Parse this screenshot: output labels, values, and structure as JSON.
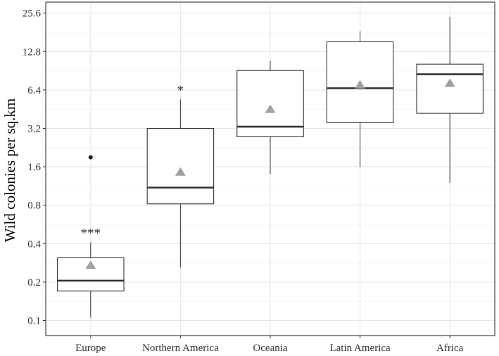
{
  "chart_data": {
    "type": "box",
    "ylabel": "Wild colonies per sq.km",
    "xlabel": "",
    "y_scale": "log2",
    "ylim": [
      0.088,
      27.5
    ],
    "yticks": [
      0.1,
      0.2,
      0.4,
      0.8,
      1.6,
      3.2,
      6.4,
      12.8,
      25.6
    ],
    "ytick_labels": [
      "0.1",
      "0.2",
      "0.4",
      "0.8",
      "1.6",
      "3.2",
      "6.4",
      "12.8",
      "25.6"
    ],
    "grid": true,
    "categories": [
      "Europe",
      "Northern America",
      "Oceania",
      "Latin America",
      "Africa"
    ],
    "boxes": [
      {
        "category": "Europe",
        "whisker_low": 0.105,
        "q1": 0.17,
        "median": 0.205,
        "q3": 0.31,
        "whisker_high": 0.41,
        "mean": 0.27,
        "outliers": [
          1.9
        ],
        "annotation": "***"
      },
      {
        "category": "Northern America",
        "whisker_low": 0.26,
        "q1": 0.82,
        "median": 1.1,
        "q3": 3.2,
        "whisker_high": 5.4,
        "mean": 1.45,
        "outliers": [],
        "annotation": "*"
      },
      {
        "category": "Oceania",
        "whisker_low": 1.4,
        "q1": 2.75,
        "median": 3.3,
        "q3": 9.1,
        "whisker_high": 10.8,
        "mean": 4.5,
        "outliers": [],
        "annotation": ""
      },
      {
        "category": "Latin America",
        "whisker_low": 1.6,
        "q1": 3.55,
        "median": 6.6,
        "q3": 15.3,
        "whisker_high": 18.5,
        "mean": 7.0,
        "outliers": [],
        "annotation": ""
      },
      {
        "category": "Africa",
        "whisker_low": 1.2,
        "q1": 4.2,
        "median": 8.5,
        "q3": 10.2,
        "whisker_high": 24.0,
        "mean": 7.2,
        "outliers": [],
        "annotation": ""
      }
    ],
    "colors": {
      "box_fill": "#ffffff",
      "box_stroke": "#333333",
      "median": "#333333",
      "mean_marker": "#a0a0a0",
      "outlier": "#222222",
      "grid_major": "#e6e6e6",
      "grid_minor": "#f2f2f2",
      "panel_border": "#333333"
    },
    "mean_marker_shape": "triangle",
    "legend": "none"
  }
}
